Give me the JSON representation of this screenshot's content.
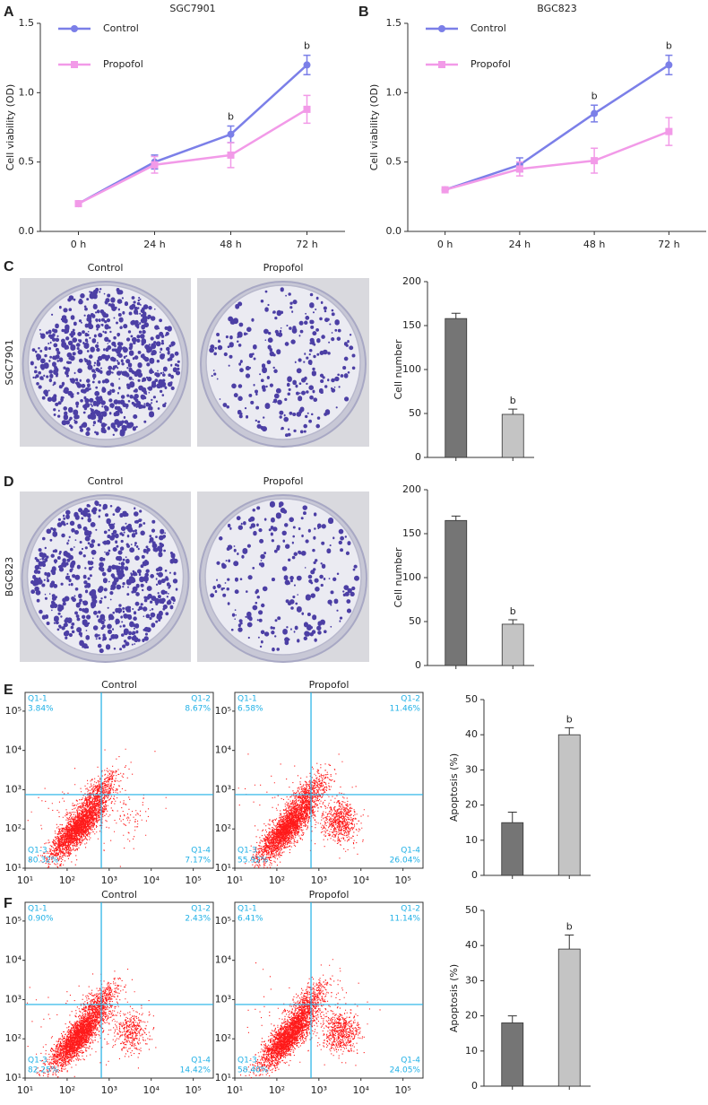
{
  "chart_data": [
    {
      "type": "line",
      "panel": "A",
      "title": "SGC7901",
      "y_label": "Cell viability (OD)",
      "categories": [
        "0 h",
        "24 h",
        "48 h",
        "72 h"
      ],
      "series": [
        {
          "name": "Control",
          "color": "#7b7fe8",
          "marker": "circle",
          "values": [
            0.2,
            0.5,
            0.7,
            1.2
          ],
          "errors": [
            0,
            0.05,
            0.06,
            0.07
          ]
        },
        {
          "name": "Propofol",
          "color": "#f29ae8",
          "marker": "square",
          "values": [
            0.2,
            0.48,
            0.55,
            0.88
          ],
          "errors": [
            0,
            0.06,
            0.09,
            0.1
          ]
        }
      ],
      "significance": [
        null,
        null,
        "b",
        "b"
      ],
      "legend": "upper left",
      "ylim": [
        0,
        1.5
      ],
      "yticks": [
        {
          "value": 0,
          "label": "0.0"
        },
        0.5,
        {
          "value": 1,
          "label": "1.0"
        },
        1.5
      ]
    },
    {
      "type": "line",
      "panel": "B",
      "title": "BGC823",
      "y_label": "Cell viability (OD)",
      "categories": [
        "0 h",
        "24 h",
        "48 h",
        "72 h"
      ],
      "series": [
        {
          "name": "Control",
          "color": "#7b7fe8",
          "marker": "circle",
          "values": [
            0.3,
            0.48,
            0.85,
            1.2
          ],
          "errors": [
            0,
            0.05,
            0.06,
            0.07
          ]
        },
        {
          "name": "Propofol",
          "color": "#f29ae8",
          "marker": "square",
          "values": [
            0.3,
            0.45,
            0.51,
            0.72
          ],
          "errors": [
            0,
            0.05,
            0.09,
            0.1
          ]
        }
      ],
      "significance": [
        null,
        null,
        "b",
        "b"
      ],
      "legend": "upper left",
      "ylim": [
        0,
        1.5
      ],
      "yticks": [
        {
          "value": 0,
          "label": "0.0"
        },
        0.5,
        {
          "value": 1,
          "label": "1.0"
        },
        1.5
      ]
    },
    {
      "type": "photo",
      "panel": "C",
      "row_label": "SGC7901",
      "title": "Control"
    },
    {
      "type": "photo",
      "title": "Propofol"
    },
    {
      "type": "bar",
      "y_label": "Cell number",
      "categories": [
        null,
        null
      ],
      "values": [
        158,
        49
      ],
      "errors": [
        6,
        6
      ],
      "colors": [
        "#757575",
        "#c4c4c4"
      ],
      "significance": [
        null,
        "b"
      ],
      "ylim": [
        0,
        200
      ],
      "yticks": [
        0,
        50,
        100,
        150,
        200
      ]
    },
    {
      "type": "photo",
      "panel": "D",
      "row_label": "BGC823",
      "title": "Control"
    },
    {
      "type": "photo",
      "title": "Propofol"
    },
    {
      "type": "bar",
      "y_label": "Cell number",
      "categories": [
        null,
        null
      ],
      "values": [
        165,
        47
      ],
      "errors": [
        5,
        5
      ],
      "colors": [
        "#757575",
        "#c4c4c4"
      ],
      "significance": [
        null,
        "b"
      ],
      "ylim": [
        0,
        200
      ],
      "yticks": [
        0,
        50,
        100,
        150,
        200
      ]
    },
    {
      "type": "flow",
      "panel": "E",
      "title": "Control",
      "log": true,
      "gate": {
        "x": 650,
        "y": 750
      },
      "quadrants": [
        {
          "name": "Q1-1",
          "label": "3.84%"
        },
        {
          "name": "Q1-2",
          "label": "8.67%"
        },
        {
          "name": "Q1-3",
          "label": "80.32%"
        },
        {
          "name": "Q1-4",
          "label": "7.17%"
        }
      ],
      "xlim": [
        10,
        300000
      ],
      "ylim": [
        10,
        300000
      ],
      "xticks": [
        {
          "value": 10,
          "label": "10¹"
        },
        {
          "value": 100,
          "label": "10²"
        },
        {
          "value": 1000,
          "label": "10³"
        },
        {
          "value": 10000,
          "label": "10⁴"
        },
        {
          "value": 100000,
          "label": "10⁵"
        }
      ],
      "yticks": [
        {
          "value": 10,
          "label": "10¹"
        },
        {
          "value": 100,
          "label": "10²"
        },
        {
          "value": 1000,
          "label": "10³"
        },
        {
          "value": 10000,
          "label": "10⁴"
        },
        {
          "value": 100000,
          "label": "10⁵"
        }
      ]
    },
    {
      "type": "flow",
      "title": "Propofol",
      "log": true,
      "gate": {
        "x": 650,
        "y": 750
      },
      "quadrants": [
        {
          "name": "Q1-1",
          "label": "6.58%"
        },
        {
          "name": "Q1-2",
          "label": "11.46%"
        },
        {
          "name": "Q1-3",
          "label": "55.92%"
        },
        {
          "name": "Q1-4",
          "label": "26.04%"
        }
      ],
      "xlim": [
        10,
        300000
      ],
      "ylim": [
        10,
        300000
      ],
      "xticks": [
        {
          "value": 10,
          "label": "10¹"
        },
        {
          "value": 100,
          "label": "10²"
        },
        {
          "value": 1000,
          "label": "10³"
        },
        {
          "value": 10000,
          "label": "10⁴"
        },
        {
          "value": 100000,
          "label": "10⁵"
        }
      ],
      "yticks": [
        {
          "value": 10,
          "label": "10¹"
        },
        {
          "value": 100,
          "label": "10²"
        },
        {
          "value": 1000,
          "label": "10³"
        },
        {
          "value": 10000,
          "label": "10⁴"
        },
        {
          "value": 100000,
          "label": "10⁵"
        }
      ]
    },
    {
      "type": "bar",
      "y_label": "Apoptosis (%)",
      "categories": [
        null,
        null
      ],
      "values": [
        15,
        40
      ],
      "errors": [
        3,
        2
      ],
      "colors": [
        "#757575",
        "#c4c4c4"
      ],
      "significance": [
        null,
        "b"
      ],
      "ylim": [
        0,
        50
      ],
      "yticks": [
        0,
        10,
        20,
        30,
        40,
        50
      ]
    },
    {
      "type": "flow",
      "panel": "F",
      "title": "Control",
      "log": true,
      "gate": {
        "x": 650,
        "y": 750
      },
      "quadrants": [
        {
          "name": "Q1-1",
          "label": "0.90%"
        },
        {
          "name": "Q1-2",
          "label": "2.43%"
        },
        {
          "name": "Q1-3",
          "label": "82.25%"
        },
        {
          "name": "Q1-4",
          "label": "14.42%"
        }
      ],
      "xlim": [
        10,
        300000
      ],
      "ylim": [
        10,
        300000
      ],
      "xticks": [
        {
          "value": 10,
          "label": "10¹"
        },
        {
          "value": 100,
          "label": "10²"
        },
        {
          "value": 1000,
          "label": "10³"
        },
        {
          "value": 10000,
          "label": "10⁴"
        },
        {
          "value": 100000,
          "label": "10⁵"
        }
      ],
      "yticks": [
        {
          "value": 10,
          "label": "10¹"
        },
        {
          "value": 100,
          "label": "10²"
        },
        {
          "value": 1000,
          "label": "10³"
        },
        {
          "value": 10000,
          "label": "10⁴"
        },
        {
          "value": 100000,
          "label": "10⁵"
        }
      ]
    },
    {
      "type": "flow",
      "title": "Propofol",
      "log": true,
      "gate": {
        "x": 650,
        "y": 750
      },
      "quadrants": [
        {
          "name": "Q1-1",
          "label": "6.41%"
        },
        {
          "name": "Q1-2",
          "label": "11.14%"
        },
        {
          "name": "Q1-3",
          "label": "58.40%"
        },
        {
          "name": "Q1-4",
          "label": "24.05%"
        }
      ],
      "xlim": [
        10,
        300000
      ],
      "ylim": [
        10,
        300000
      ],
      "xticks": [
        {
          "value": 10,
          "label": "10¹"
        },
        {
          "value": 100,
          "label": "10²"
        },
        {
          "value": 1000,
          "label": "10³"
        },
        {
          "value": 10000,
          "label": "10⁴"
        },
        {
          "value": 100000,
          "label": "10⁵"
        }
      ],
      "yticks": [
        {
          "value": 10,
          "label": "10¹"
        },
        {
          "value": 100,
          "label": "10²"
        },
        {
          "value": 1000,
          "label": "10³"
        },
        {
          "value": 10000,
          "label": "10⁴"
        },
        {
          "value": 100000,
          "label": "10⁵"
        }
      ]
    },
    {
      "type": "bar",
      "y_label": "Apoptosis (%)",
      "categories": [
        null,
        null
      ],
      "values": [
        18,
        39
      ],
      "errors": [
        2,
        4
      ],
      "colors": [
        "#757575",
        "#c4c4c4"
      ],
      "significance": [
        null,
        "b"
      ],
      "ylim": [
        0,
        50
      ],
      "yticks": [
        0,
        10,
        20,
        30,
        40,
        50
      ]
    }
  ]
}
